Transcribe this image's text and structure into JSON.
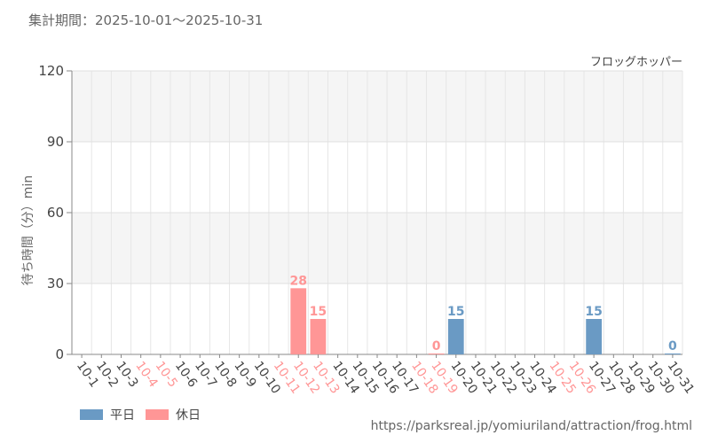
{
  "header": {
    "period": "集計期間：2025-10-01～2025-10-31"
  },
  "chart_data": {
    "type": "bar",
    "attraction": "フロッグホッパー",
    "ylabel": "待ち時間（分）min",
    "ylim": [
      0,
      120
    ],
    "yticks": [
      0,
      30,
      60,
      90,
      120
    ],
    "categories": [
      "10-1",
      "10-2",
      "10-3",
      "10-4",
      "10-5",
      "10-6",
      "10-7",
      "10-8",
      "10-9",
      "10-10",
      "10-11",
      "10-12",
      "10-13",
      "10-14",
      "10-15",
      "10-16",
      "10-17",
      "10-18",
      "10-19",
      "10-20",
      "10-21",
      "10-22",
      "10-23",
      "10-24",
      "10-25",
      "10-26",
      "10-27",
      "10-28",
      "10-29",
      "10-30",
      "10-31"
    ],
    "holiday_flags": [
      false,
      false,
      false,
      true,
      true,
      false,
      false,
      false,
      false,
      false,
      true,
      true,
      true,
      false,
      false,
      false,
      false,
      true,
      true,
      false,
      false,
      false,
      false,
      false,
      true,
      true,
      false,
      false,
      false,
      false,
      false
    ],
    "values": [
      null,
      null,
      null,
      null,
      null,
      null,
      null,
      null,
      null,
      null,
      null,
      28,
      15,
      null,
      null,
      null,
      null,
      null,
      0,
      15,
      null,
      null,
      null,
      null,
      null,
      null,
      15,
      null,
      null,
      null,
      0
    ],
    "series": [
      {
        "name": "平日",
        "color": "#6a9ac4"
      },
      {
        "name": "休日",
        "color": "#ff9696"
      }
    ],
    "grid": true
  },
  "footer": {
    "source": "https://parksreal.jp/yomiuriland/attraction/frog.html"
  }
}
